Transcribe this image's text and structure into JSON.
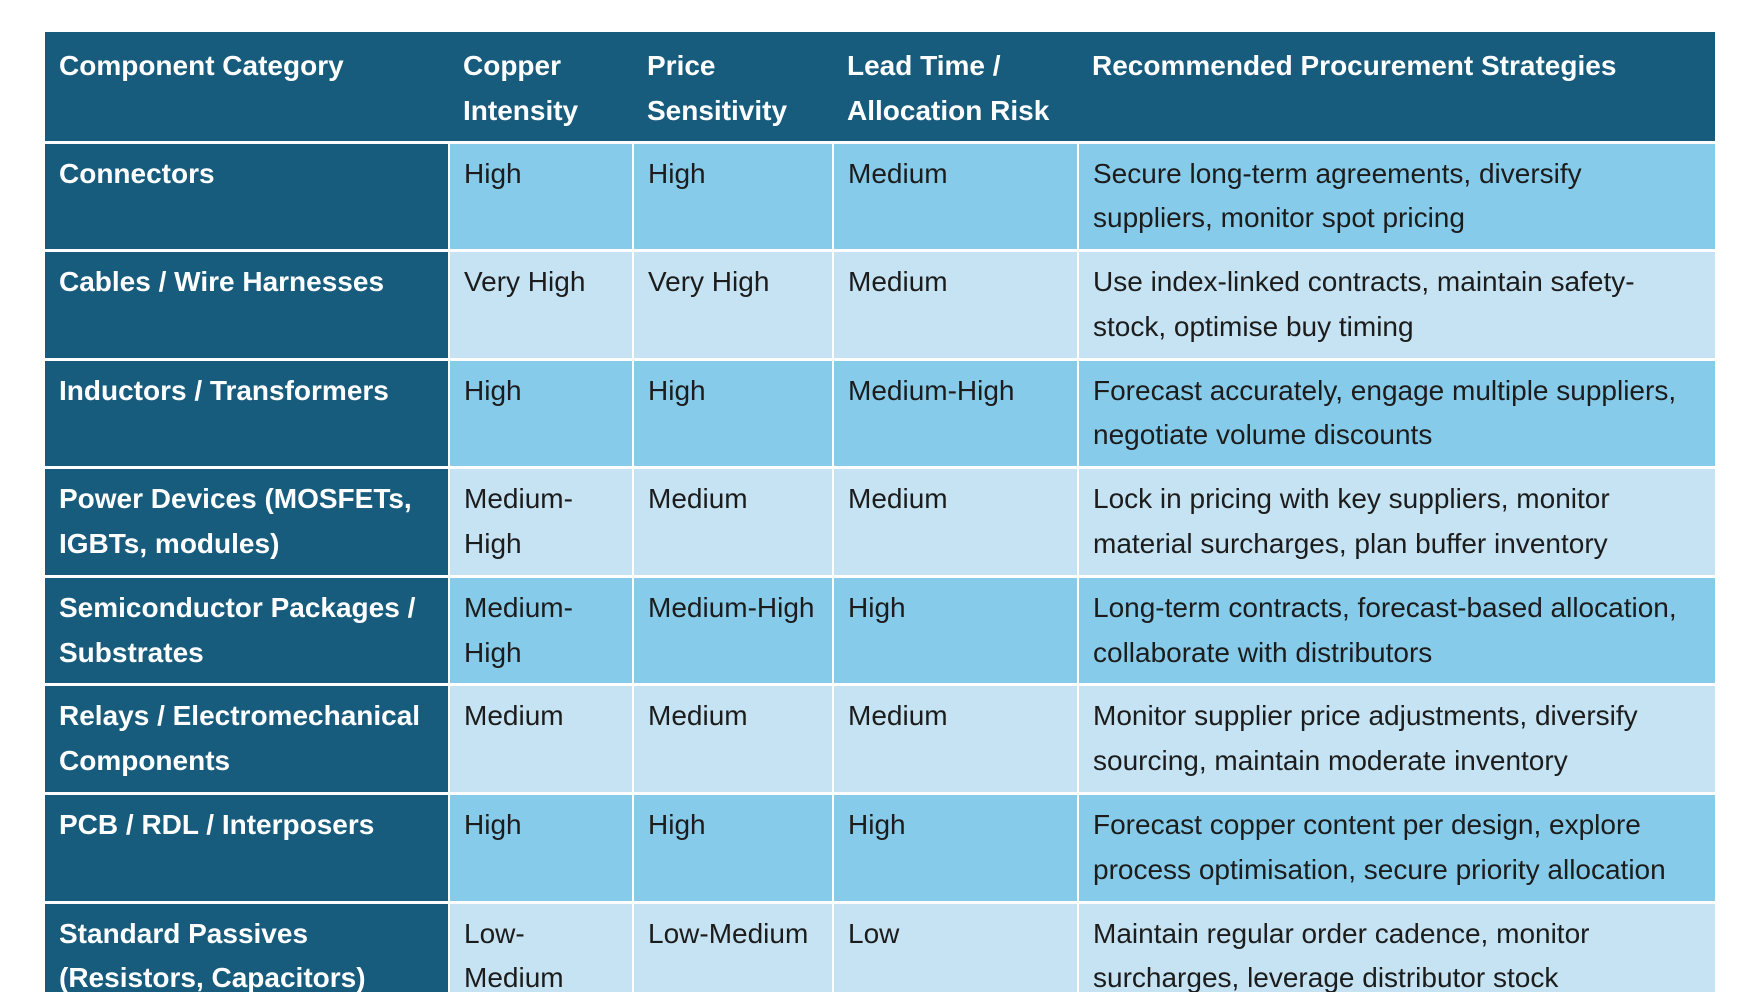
{
  "colors": {
    "header_bg": "#175B7D",
    "row_shade_a": "#87CBEA",
    "row_shade_b": "#C5E3F3",
    "header_text": "#FFFFFF",
    "body_text": "#1C1C1C",
    "divider": "#FFFFFF"
  },
  "table": {
    "columns": [
      "Component Category",
      "Copper Intensity",
      "Price Sensitivity",
      "Lead Time / Allocation Risk",
      "Recommended Procurement Strategies"
    ],
    "rows": [
      {
        "category": "Connectors",
        "copper_intensity": "High",
        "price_sensitivity": "High",
        "lead_time_allocation_risk": "Medium",
        "strategies": "Secure long-term agreements, diversify suppliers, monitor spot pricing"
      },
      {
        "category": "Cables / Wire Harnesses",
        "copper_intensity": "Very High",
        "price_sensitivity": "Very High",
        "lead_time_allocation_risk": "Medium",
        "strategies": "Use index-linked contracts, maintain safety-stock, optimise buy timing"
      },
      {
        "category": "Inductors / Transformers",
        "copper_intensity": "High",
        "price_sensitivity": "High",
        "lead_time_allocation_risk": "Medium-High",
        "strategies": "Forecast accurately, engage multiple suppliers, negotiate volume discounts"
      },
      {
        "category": "Power Devices (MOSFETs, IGBTs, modules)",
        "copper_intensity": "Medium-High",
        "price_sensitivity": "Medium",
        "lead_time_allocation_risk": "Medium",
        "strategies": "Lock in pricing with key suppliers, monitor material surcharges, plan buffer inventory"
      },
      {
        "category": "Semiconductor Packages / Substrates",
        "copper_intensity": "Medium-High",
        "price_sensitivity": "Medium-High",
        "lead_time_allocation_risk": "High",
        "strategies": "Long-term contracts, forecast-based allocation, collaborate with distributors"
      },
      {
        "category": "Relays / Electromechanical Components",
        "copper_intensity": "Medium",
        "price_sensitivity": "Medium",
        "lead_time_allocation_risk": "Medium",
        "strategies": "Monitor supplier price adjustments, diversify sourcing, maintain moderate inventory"
      },
      {
        "category": "PCB / RDL / Interposers",
        "copper_intensity": "High",
        "price_sensitivity": "High",
        "lead_time_allocation_risk": "High",
        "strategies": "Forecast copper content per design, explore process optimisation, secure priority allocation"
      },
      {
        "category": "Standard Passives (Resistors, Capacitors)",
        "copper_intensity": "Low-Medium",
        "price_sensitivity": "Low-Medium",
        "lead_time_allocation_risk": "Low",
        "strategies": "Maintain regular order cadence, monitor surcharges, leverage distributor stock"
      }
    ]
  }
}
